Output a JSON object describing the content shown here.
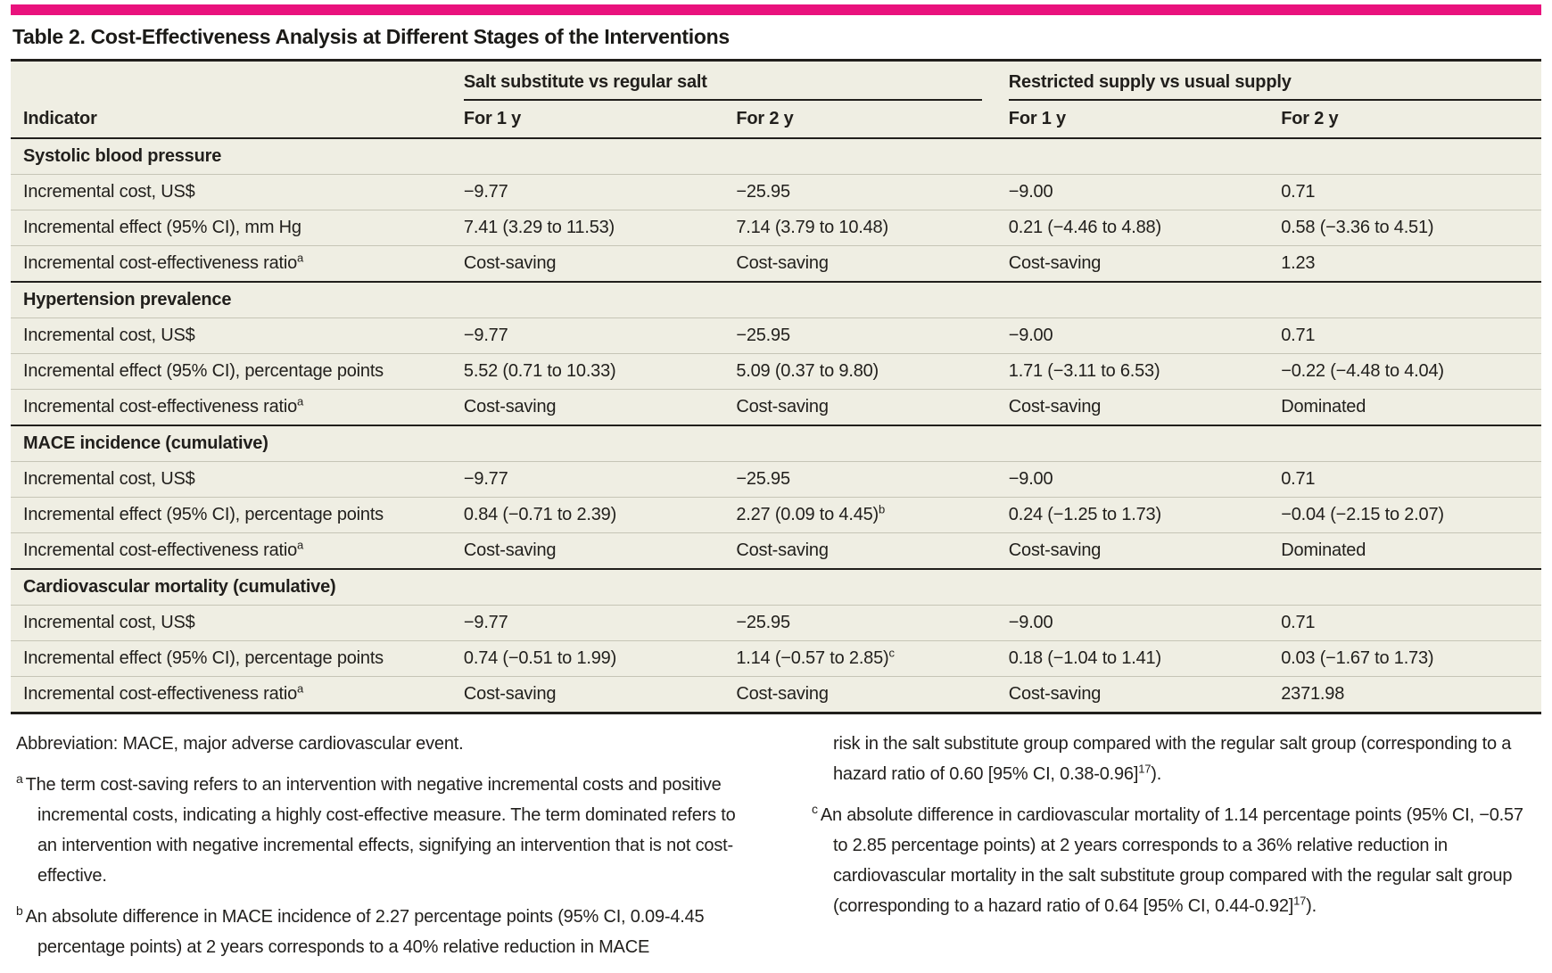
{
  "colors": {
    "accent": "#e9127d",
    "table_background": "#efeee3",
    "dark_rule": "#211f1c",
    "light_rule": "#c6c5b6",
    "text": "#211f1c"
  },
  "title": "Table 2. Cost-Effectiveness Analysis at Different Stages of the Interventions",
  "table": {
    "col_groups": [
      {
        "label": "Salt substitute vs regular salt"
      },
      {
        "label": "Restricted supply vs usual supply"
      }
    ],
    "columns": [
      "Indicator",
      "For 1 y",
      "For 2 y",
      "For 1 y",
      "For 2 y"
    ],
    "sections": [
      {
        "header": "Systolic blood pressure",
        "rows": [
          {
            "label": "Incremental cost, US$",
            "values": [
              "−9.77",
              "−25.95",
              "−9.00",
              "0.71"
            ]
          },
          {
            "label": "Incremental effect (95% CI), mm Hg",
            "values": [
              "7.41 (3.29 to 11.53)",
              "7.14 (3.79 to 10.48)",
              "0.21 (−4.46 to 4.88)",
              "0.58 (−3.36 to 4.51)"
            ]
          },
          {
            "label": "Incremental cost-effectiveness ratio",
            "label_sup": "a",
            "values": [
              "Cost-saving",
              "Cost-saving",
              "Cost-saving",
              "1.23"
            ]
          }
        ]
      },
      {
        "header": "Hypertension prevalence",
        "rows": [
          {
            "label": "Incremental cost, US$",
            "values": [
              "−9.77",
              "−25.95",
              "−9.00",
              "0.71"
            ]
          },
          {
            "label": "Incremental effect (95% CI), percentage points",
            "values": [
              "5.52 (0.71 to 10.33)",
              "5.09 (0.37 to 9.80)",
              "1.71 (−3.11 to 6.53)",
              "−0.22 (−4.48 to 4.04)"
            ]
          },
          {
            "label": "Incremental cost-effectiveness ratio",
            "label_sup": "a",
            "values": [
              "Cost-saving",
              "Cost-saving",
              "Cost-saving",
              "Dominated"
            ]
          }
        ]
      },
      {
        "header": "MACE incidence (cumulative)",
        "rows": [
          {
            "label": "Incremental cost, US$",
            "values": [
              "−9.77",
              "−25.95",
              "−9.00",
              "0.71"
            ]
          },
          {
            "label": "Incremental effect (95% CI), percentage points",
            "values": [
              "0.84 (−0.71 to 2.39)",
              "2.27 (0.09 to 4.45)",
              "0.24 (−1.25 to 1.73)",
              "−0.04 (−2.15 to 2.07)"
            ],
            "value_sup": "b"
          },
          {
            "label": "Incremental cost-effectiveness ratio",
            "label_sup": "a",
            "values": [
              "Cost-saving",
              "Cost-saving",
              "Cost-saving",
              "Dominated"
            ]
          }
        ]
      },
      {
        "header": "Cardiovascular mortality (cumulative)",
        "rows": [
          {
            "label": "Incremental cost, US$",
            "values": [
              "−9.77",
              "−25.95",
              "−9.00",
              "0.71"
            ]
          },
          {
            "label": "Incremental effect (95% CI), percentage points",
            "values": [
              "0.74 (−0.51 to 1.99)",
              "1.14 (−0.57 to 2.85)",
              "0.18 (−1.04 to 1.41)",
              "0.03 (−1.67 to 1.73)"
            ],
            "value_sup": "c"
          },
          {
            "label": "Incremental cost-effectiveness ratio",
            "label_sup": "a",
            "values": [
              "Cost-saving",
              "Cost-saving",
              "Cost-saving",
              "2371.98"
            ]
          }
        ]
      }
    ]
  },
  "footnotes": {
    "abbreviation": "Abbreviation: MACE, major adverse cardiovascular event.",
    "a": {
      "marker": "a",
      "text": "The term cost-saving refers to an intervention with negative incremental costs and positive incremental costs, indicating a highly cost-effective measure. The term dominated refers to an intervention with negative incremental effects, signifying an intervention that is not cost-effective."
    },
    "b": {
      "marker": "b",
      "text_left": "An absolute difference in MACE incidence of 2.27 percentage points (95% CI, 0.09-4.45 percentage points) at 2 years corresponds to a 40% relative reduction in MACE",
      "text_right": "risk in the salt substitute group compared with the regular salt group (corresponding to a hazard ratio of 0.60 [95% CI, 0.38-0.96]",
      "ref": "17",
      "after_ref": ")."
    },
    "c": {
      "marker": "c",
      "text": "An absolute difference in cardiovascular mortality of 1.14 percentage points (95% CI, −0.57 to 2.85 percentage points) at 2 years corresponds to a 36% relative reduction in cardiovascular mortality in the salt substitute group compared with the regular salt group (corresponding to a hazard ratio of 0.64 [95% CI, 0.44-0.92]",
      "ref": "17",
      "after_ref": ")."
    }
  }
}
